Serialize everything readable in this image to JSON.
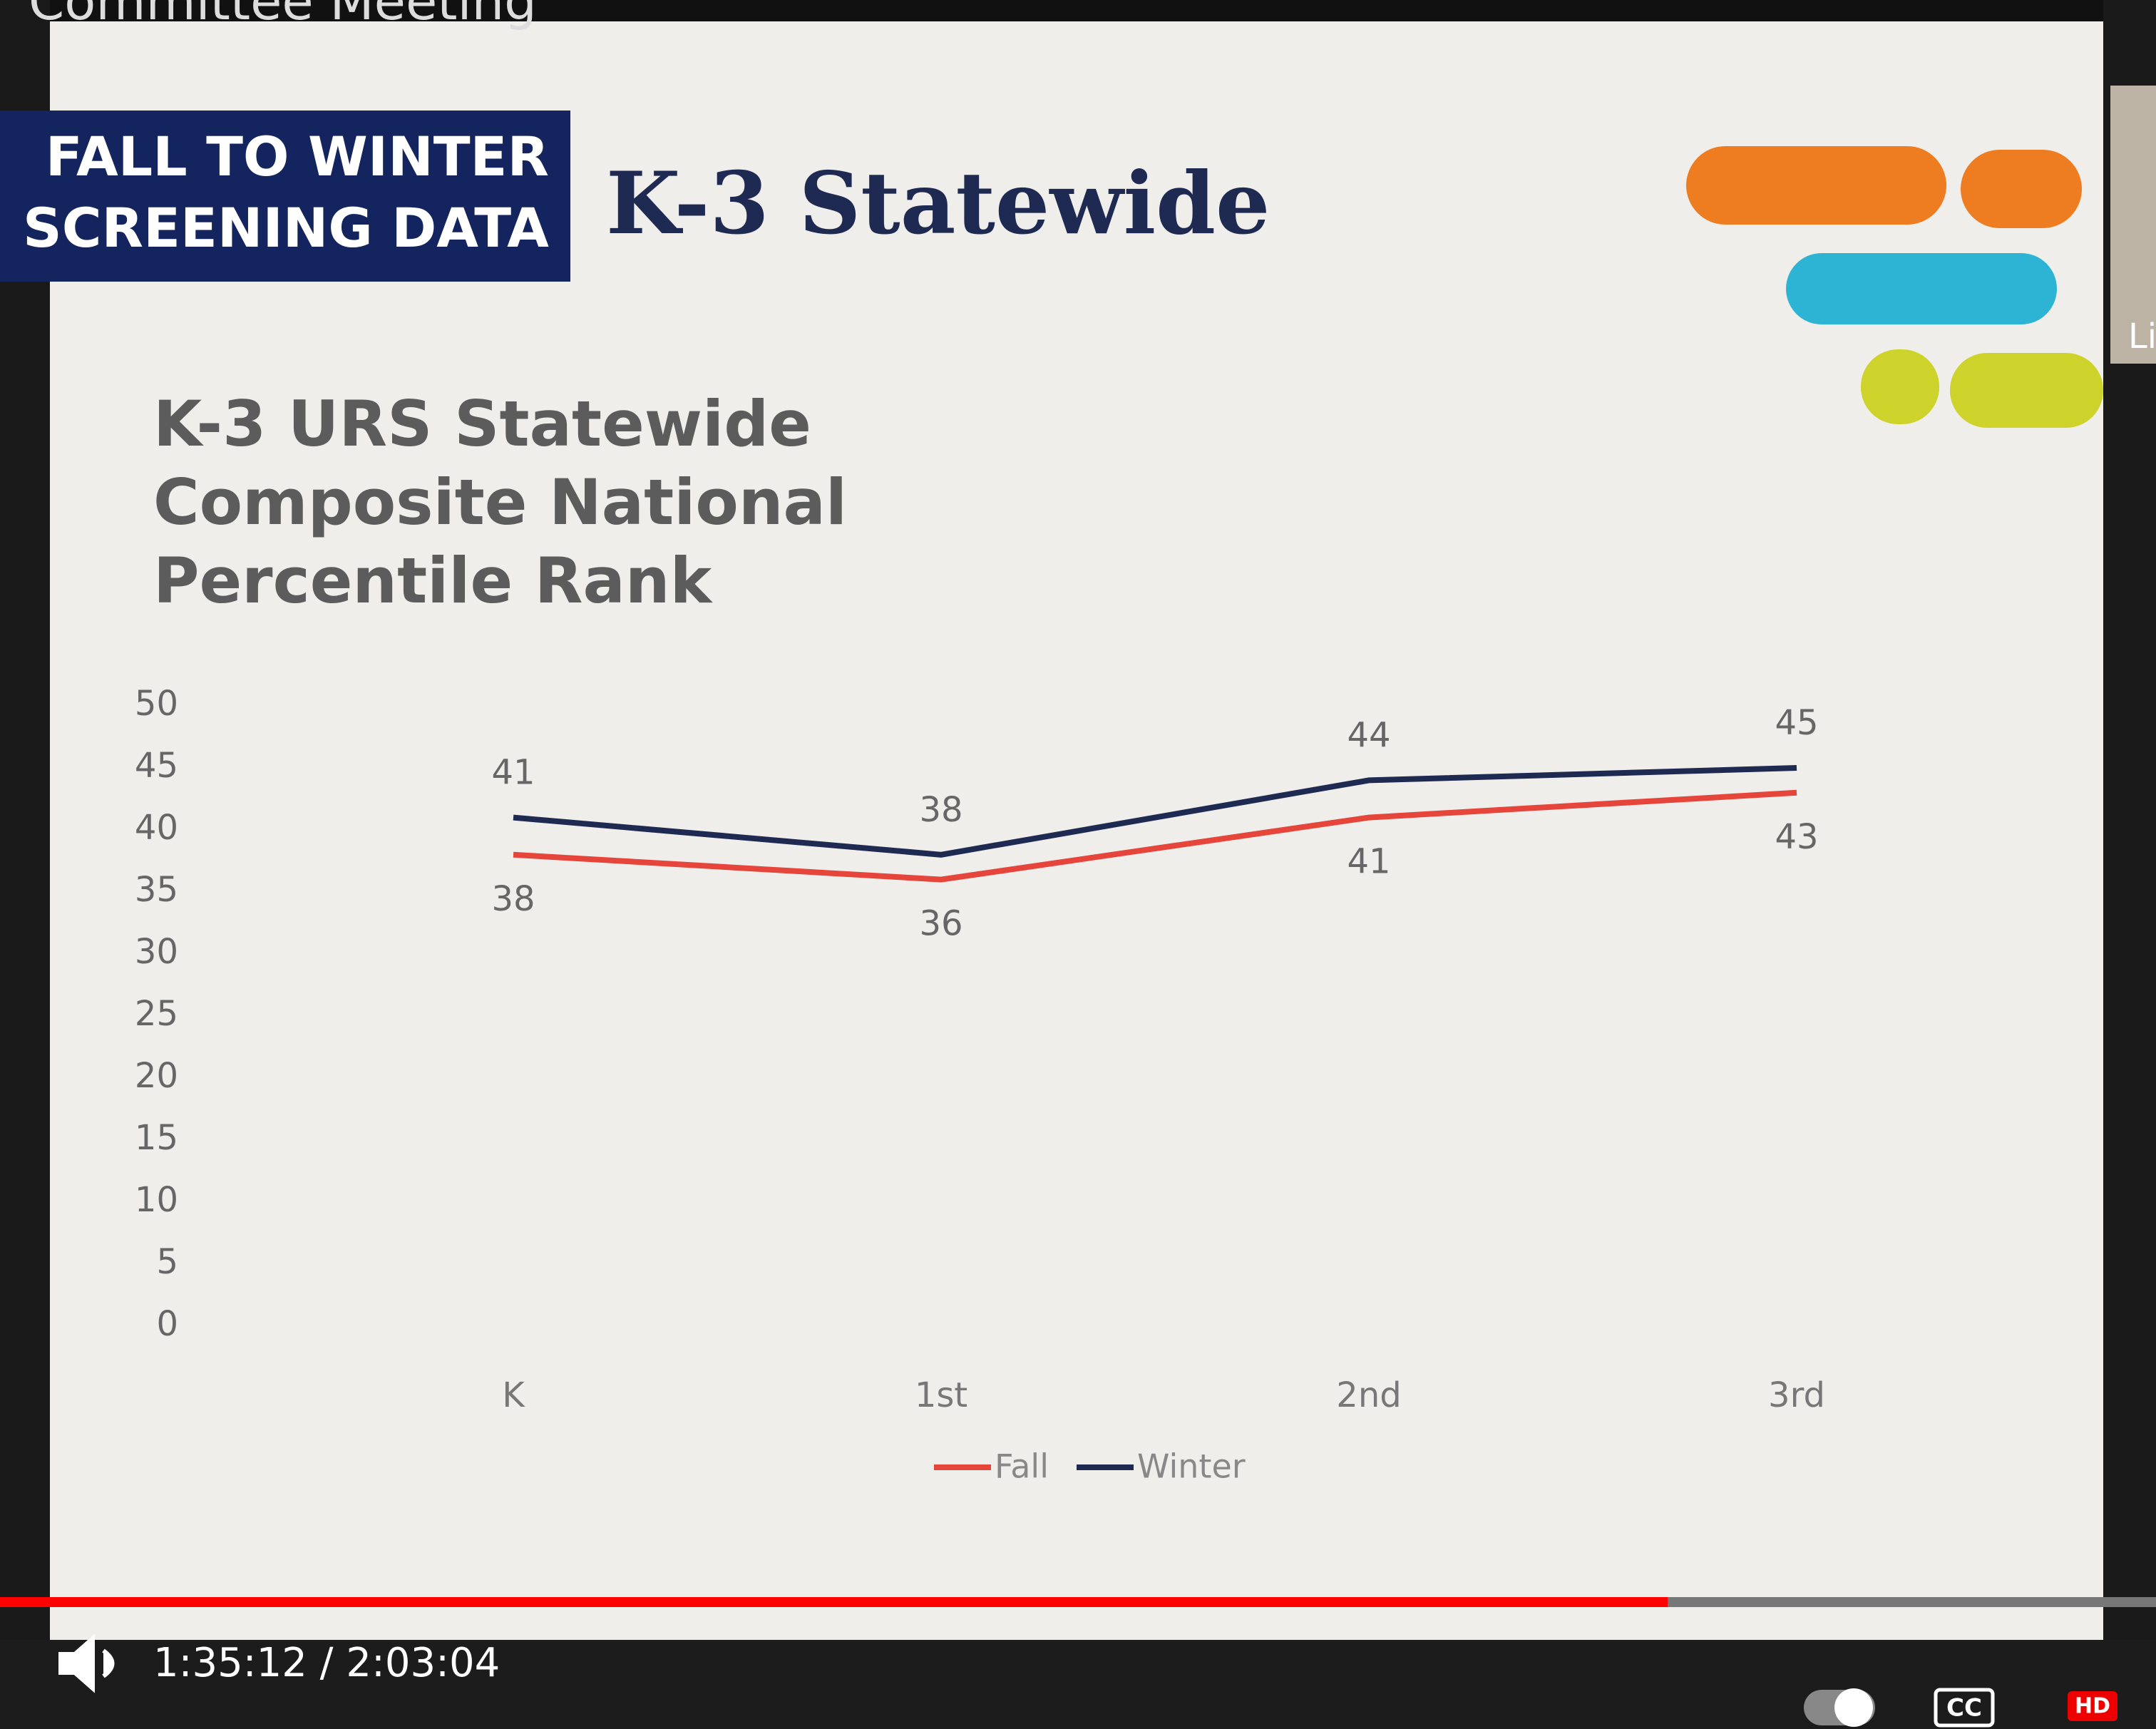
{
  "video": {
    "title": "Committee Meeting",
    "time": "1:35:12 / 2:03:04",
    "current": "1:35:12",
    "duration": "2:03:04",
    "cc": "CC",
    "hd": "HD",
    "participant": "Li"
  },
  "slide": {
    "header_lines": [
      "FALL TO WINTER",
      "SCREENING DATA"
    ],
    "title": "K-3 Statewide"
  },
  "chart_data": {
    "type": "line",
    "title": "K-3 URS Statewide Composite National Percentile Rank",
    "categories": [
      "K",
      "1st",
      "2nd",
      "3rd"
    ],
    "series": [
      {
        "name": "Fall",
        "color": "#e5453b",
        "values": [
          38,
          36,
          41,
          43
        ]
      },
      {
        "name": "Winter",
        "color": "#1e2a52",
        "values": [
          41,
          38,
          44,
          45
        ]
      }
    ],
    "ylim": [
      0,
      50
    ],
    "yticks": [
      0,
      5,
      10,
      15,
      20,
      25,
      30,
      35,
      40,
      45,
      50
    ],
    "grid": false,
    "legend": "bottom"
  }
}
